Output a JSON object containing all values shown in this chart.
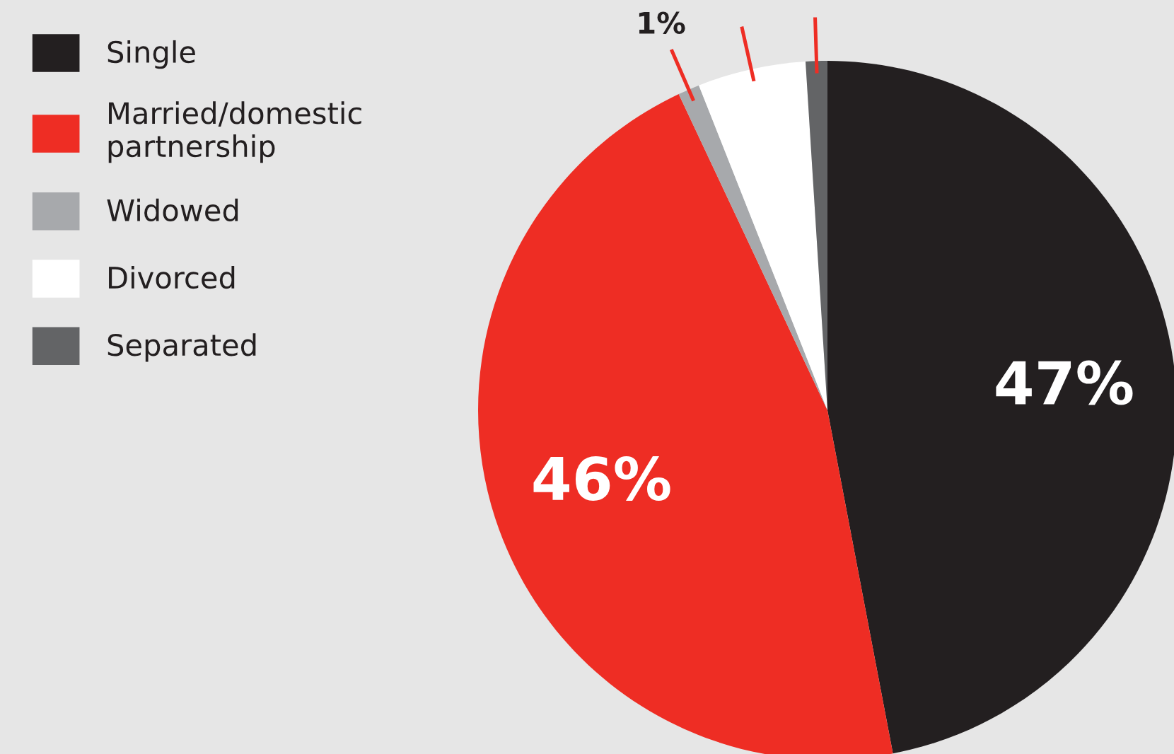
{
  "chart_data": {
    "type": "pie",
    "categories": [
      "Single",
      "Married/domestic\npartnership",
      "Widowed",
      "Divorced",
      "Separated"
    ],
    "values": [
      47,
      46,
      1,
      5,
      1
    ],
    "colors": [
      "#231f20",
      "#ee2d24",
      "#a7a9ac",
      "#ffffff",
      "#636466"
    ],
    "value_labels": [
      "47%",
      "46%",
      "1%",
      null,
      null
    ],
    "legend": "top left"
  }
}
